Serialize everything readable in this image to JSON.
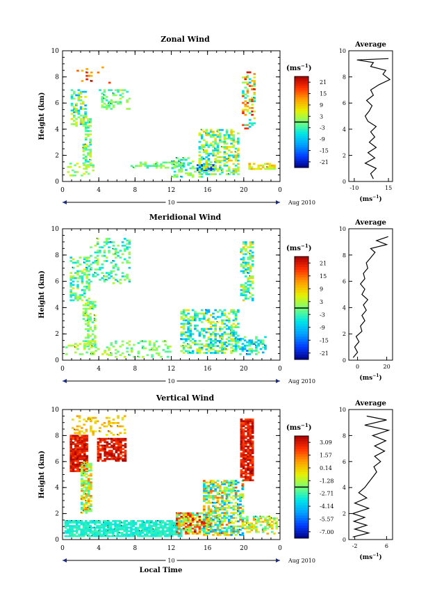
{
  "chart_data": [
    {
      "type": "heatmap",
      "title": "Zonal Wind",
      "ylabel": "Height (km)",
      "xlabel": "",
      "xticks": [
        "0",
        "4",
        "8",
        "12",
        "16",
        "20",
        "0"
      ],
      "yticks": [
        "0",
        "2",
        "4",
        "6",
        "8",
        "10"
      ],
      "xlim": [
        0,
        24
      ],
      "ylim": [
        0,
        10
      ],
      "date_bar": {
        "label": "10",
        "suffix": "Aug 2010"
      },
      "colorbar": {
        "unit_base": "(ms",
        "unit_exp": "−1",
        "unit_close": ")",
        "labels": [
          "21",
          "15",
          "9",
          "3",
          "-3",
          "-9",
          "-15",
          "-21"
        ],
        "vmin": -24,
        "vmax": 24
      },
      "regions": [
        {
          "x0": 0.9,
          "x1": 2.6,
          "y0": 4.2,
          "y1": 7.0,
          "v0": -12,
          "v1": 10,
          "d": 0.45
        },
        {
          "x0": 2.2,
          "x1": 3.2,
          "y0": 1.2,
          "y1": 5.0,
          "v0": -6,
          "v1": 8,
          "d": 0.55
        },
        {
          "x0": 0.5,
          "x1": 3.5,
          "y0": 0.4,
          "y1": 1.4,
          "v0": -3,
          "v1": 6,
          "d": 0.35
        },
        {
          "x0": 4.0,
          "x1": 7.5,
          "y0": 5.5,
          "y1": 7.0,
          "v0": -5,
          "v1": 5,
          "d": 0.3
        },
        {
          "x0": 7.5,
          "x1": 13.5,
          "y0": 1.0,
          "y1": 1.4,
          "v0": -4,
          "v1": 4,
          "d": 0.45
        },
        {
          "x0": 12.0,
          "x1": 15.5,
          "y0": 0.3,
          "y1": 1.8,
          "v0": -8,
          "v1": 4,
          "d": 0.35
        },
        {
          "x0": 14.8,
          "x1": 16.6,
          "y0": 0.8,
          "y1": 1.3,
          "v0": -22,
          "v1": -15,
          "d": 0.9
        },
        {
          "x0": 15.0,
          "x1": 19.5,
          "y0": 0.5,
          "y1": 4.0,
          "v0": -10,
          "v1": 10,
          "d": 0.5
        },
        {
          "x0": 19.8,
          "x1": 21.2,
          "y0": 4.0,
          "y1": 8.4,
          "v0": -10,
          "v1": 22,
          "d": 0.4
        },
        {
          "x0": 20.5,
          "x1": 23.5,
          "y0": 0.9,
          "y1": 1.4,
          "v0": 2,
          "v1": 12,
          "d": 0.6
        },
        {
          "x0": 1.3,
          "x1": 5.5,
          "y0": 7.5,
          "y1": 8.8,
          "v0": 10,
          "v1": 22,
          "d": 0.12
        }
      ],
      "average_panel": {
        "title": "Average",
        "xticks": [
          "-10",
          "15"
        ],
        "xlim": [
          -14,
          18
        ],
        "xlabel_base": "(ms",
        "xlabel_exp": "−1",
        "xlabel_close": ")",
        "profile": [
          {
            "h": 0.2,
            "v": 4
          },
          {
            "h": 0.6,
            "v": 2
          },
          {
            "h": 1.0,
            "v": 6
          },
          {
            "h": 1.4,
            "v": -2
          },
          {
            "h": 1.8,
            "v": 5
          },
          {
            "h": 2.2,
            "v": 0
          },
          {
            "h": 2.6,
            "v": 6
          },
          {
            "h": 3.0,
            "v": 1
          },
          {
            "h": 3.4,
            "v": 5
          },
          {
            "h": 3.8,
            "v": 2
          },
          {
            "h": 4.2,
            "v": 6
          },
          {
            "h": 4.6,
            "v": 0
          },
          {
            "h": 5.0,
            "v": -2
          },
          {
            "h": 5.4,
            "v": 1
          },
          {
            "h": 5.8,
            "v": 3
          },
          {
            "h": 6.2,
            "v": -1
          },
          {
            "h": 6.6,
            "v": 4
          },
          {
            "h": 7.0,
            "v": 2
          },
          {
            "h": 7.4,
            "v": 8
          },
          {
            "h": 7.8,
            "v": 16
          },
          {
            "h": 8.2,
            "v": 11
          },
          {
            "h": 8.5,
            "v": 13
          },
          {
            "h": 8.8,
            "v": 2
          },
          {
            "h": 9.1,
            "v": 4
          },
          {
            "h": 9.3,
            "v": -8
          },
          {
            "h": 9.4,
            "v": 15
          }
        ]
      }
    },
    {
      "type": "heatmap",
      "title": "Meridional Wind",
      "ylabel": "Height (km)",
      "xlabel": "",
      "xticks": [
        "0",
        "4",
        "8",
        "12",
        "16",
        "20",
        "0"
      ],
      "yticks": [
        "0",
        "2",
        "4",
        "6",
        "8",
        "10"
      ],
      "xlim": [
        0,
        24
      ],
      "ylim": [
        0,
        10
      ],
      "date_bar": {
        "label": "10",
        "suffix": "Aug 2010"
      },
      "colorbar": {
        "unit_base": "(ms",
        "unit_exp": "−1",
        "unit_close": ")",
        "labels": [
          "21",
          "15",
          "9",
          "3",
          "-3",
          "-9",
          "-15",
          "-21"
        ],
        "vmin": -24,
        "vmax": 24
      },
      "regions": [
        {
          "x0": 0.8,
          "x1": 3.0,
          "y0": 4.5,
          "y1": 7.8,
          "v0": -8,
          "v1": 6,
          "d": 0.45
        },
        {
          "x0": 2.2,
          "x1": 3.5,
          "y0": 1.0,
          "y1": 4.5,
          "v0": -5,
          "v1": 6,
          "d": 0.45
        },
        {
          "x0": 3.0,
          "x1": 7.5,
          "y0": 5.8,
          "y1": 9.3,
          "v0": -8,
          "v1": 4,
          "d": 0.25
        },
        {
          "x0": 0.3,
          "x1": 5.0,
          "y0": 0.4,
          "y1": 1.2,
          "v0": -2,
          "v1": 6,
          "d": 0.3
        },
        {
          "x0": 5.0,
          "x1": 12.0,
          "y0": 0.2,
          "y1": 1.4,
          "v0": -3,
          "v1": 4,
          "d": 0.25
        },
        {
          "x0": 13.0,
          "x1": 19.5,
          "y0": 0.5,
          "y1": 3.8,
          "v0": -12,
          "v1": 8,
          "d": 0.45
        },
        {
          "x0": 19.6,
          "x1": 21.0,
          "y0": 4.5,
          "y1": 9.0,
          "v0": -10,
          "v1": 10,
          "d": 0.45
        },
        {
          "x0": 19.5,
          "x1": 22.5,
          "y0": 0.4,
          "y1": 1.8,
          "v0": -14,
          "v1": 3,
          "d": 0.45
        }
      ],
      "average_panel": {
        "title": "Average",
        "xticks": [
          "0",
          "20"
        ],
        "xlim": [
          -6,
          24
        ],
        "xlabel_base": "(ms",
        "xlabel_exp": "−1",
        "xlabel_close": ")",
        "profile": [
          {
            "h": 0.2,
            "v": -3
          },
          {
            "h": 0.6,
            "v": 0
          },
          {
            "h": 1.0,
            "v": -2
          },
          {
            "h": 1.4,
            "v": 1
          },
          {
            "h": 1.8,
            "v": -1
          },
          {
            "h": 2.2,
            "v": 3
          },
          {
            "h": 2.6,
            "v": 2
          },
          {
            "h": 3.0,
            "v": 5
          },
          {
            "h": 3.4,
            "v": 3
          },
          {
            "h": 3.8,
            "v": 6
          },
          {
            "h": 4.2,
            "v": 4
          },
          {
            "h": 4.6,
            "v": 7
          },
          {
            "h": 5.0,
            "v": 3
          },
          {
            "h": 5.4,
            "v": 5
          },
          {
            "h": 5.8,
            "v": 2
          },
          {
            "h": 6.2,
            "v": 5
          },
          {
            "h": 6.6,
            "v": 4
          },
          {
            "h": 7.0,
            "v": 7
          },
          {
            "h": 7.4,
            "v": 6
          },
          {
            "h": 7.8,
            "v": 9
          },
          {
            "h": 8.2,
            "v": 12
          },
          {
            "h": 8.5,
            "v": 9
          },
          {
            "h": 8.8,
            "v": 20
          },
          {
            "h": 9.1,
            "v": 13
          },
          {
            "h": 9.4,
            "v": 21
          }
        ]
      }
    },
    {
      "type": "heatmap",
      "title": "Vertical Wind",
      "ylabel": "Height (km)",
      "xlabel": "Local Time",
      "xticks": [
        "0",
        "4",
        "8",
        "12",
        "16",
        "20",
        "0"
      ],
      "yticks": [
        "0",
        "2",
        "4",
        "6",
        "8",
        "10"
      ],
      "xlim": [
        0,
        24
      ],
      "ylim": [
        0,
        10
      ],
      "date_bar": {
        "label": "10",
        "suffix": "Aug 2010"
      },
      "colorbar": {
        "unit_base": "(ms",
        "unit_exp": "−1",
        "unit_close": ")",
        "labels": [
          "3.09",
          "1.57",
          "0.14",
          "-1.28",
          "-2.71",
          "-4.14",
          "-5.57",
          "-7.00"
        ],
        "vmin": -7.71,
        "vmax": 3.81
      },
      "regions": [
        {
          "x0": 0.8,
          "x1": 2.6,
          "y0": 5.2,
          "y1": 8.0,
          "v0": 2.0,
          "v1": 3.8,
          "d": 0.9
        },
        {
          "x0": 3.8,
          "x1": 7.0,
          "y0": 6.0,
          "y1": 7.8,
          "v0": 2.0,
          "v1": 3.8,
          "d": 0.8
        },
        {
          "x0": 2.0,
          "x1": 3.2,
          "y0": 2.0,
          "y1": 6.0,
          "v0": -3.0,
          "v1": 1.5,
          "d": 0.7
        },
        {
          "x0": 0.2,
          "x1": 13.0,
          "y0": 0.2,
          "y1": 1.5,
          "v0": -3.4,
          "v1": -2.6,
          "d": 0.85
        },
        {
          "x0": 1.0,
          "x1": 7.0,
          "y0": 8.0,
          "y1": 9.5,
          "v0": -0.5,
          "v1": 1.0,
          "d": 0.25
        },
        {
          "x0": 12.5,
          "x1": 16.5,
          "y0": 0.4,
          "y1": 2.0,
          "v0": -3.0,
          "v1": 3.5,
          "d": 0.7
        },
        {
          "x0": 15.5,
          "x1": 20.0,
          "y0": 0.3,
          "y1": 4.5,
          "v0": -5.0,
          "v1": 2.0,
          "d": 0.6
        },
        {
          "x0": 19.6,
          "x1": 21.0,
          "y0": 4.5,
          "y1": 9.2,
          "v0": 2.0,
          "v1": 3.8,
          "d": 0.85
        },
        {
          "x0": 20.0,
          "x1": 23.6,
          "y0": 0.4,
          "y1": 1.8,
          "v0": -3.0,
          "v1": 1.0,
          "d": 0.55
        }
      ],
      "average_panel": {
        "title": "Average",
        "xticks": [
          "-2",
          "6"
        ],
        "xlim": [
          -3.5,
          7.5
        ],
        "xlabel_base": "(ms",
        "xlabel_exp": "−1",
        "xlabel_close": ")",
        "profile": [
          {
            "h": 0.2,
            "v": -2.5
          },
          {
            "h": 0.5,
            "v": 1.5
          },
          {
            "h": 0.8,
            "v": -2.0
          },
          {
            "h": 1.1,
            "v": 1.0
          },
          {
            "h": 1.4,
            "v": -2.2
          },
          {
            "h": 1.7,
            "v": 0.5
          },
          {
            "h": 2.0,
            "v": -2.5
          },
          {
            "h": 2.4,
            "v": 1.5
          },
          {
            "h": 2.8,
            "v": -2.0
          },
          {
            "h": 3.2,
            "v": 1.0
          },
          {
            "h": 3.6,
            "v": -1.0
          },
          {
            "h": 4.0,
            "v": 0.5
          },
          {
            "h": 4.4,
            "v": 1.5
          },
          {
            "h": 4.8,
            "v": 2.5
          },
          {
            "h": 5.2,
            "v": 3.5
          },
          {
            "h": 5.6,
            "v": 2.8
          },
          {
            "h": 6.0,
            "v": 4.5
          },
          {
            "h": 6.4,
            "v": 3.0
          },
          {
            "h": 6.8,
            "v": 5.5
          },
          {
            "h": 7.2,
            "v": 3.0
          },
          {
            "h": 7.6,
            "v": 5.8
          },
          {
            "h": 8.0,
            "v": 2.5
          },
          {
            "h": 8.4,
            "v": 6.5
          },
          {
            "h": 8.8,
            "v": 0.5
          },
          {
            "h": 9.2,
            "v": 6.0
          },
          {
            "h": 9.5,
            "v": 1.0
          }
        ]
      }
    }
  ]
}
